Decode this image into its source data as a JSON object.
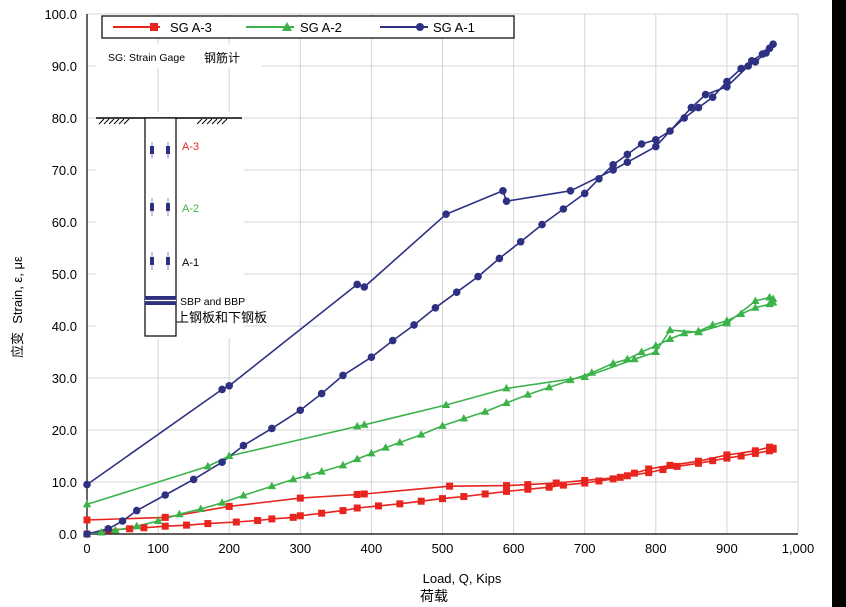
{
  "chart_data": {
    "type": "line",
    "title": "",
    "xlabel": "Load, Q, Kips",
    "xlabel_cn": "荷载",
    "ylabel": "Strain, ε, με",
    "ylabel_cn": "应变",
    "xlim": [
      0,
      1000
    ],
    "ylim": [
      0,
      100
    ],
    "x_ticks": [
      0,
      100,
      200,
      300,
      400,
      500,
      600,
      700,
      800,
      900,
      1000
    ],
    "x_tick_labels": [
      "0",
      "100",
      "200",
      "300",
      "400",
      "500",
      "600",
      "700",
      "800",
      "900",
      "1,000"
    ],
    "y_ticks": [
      0,
      10,
      20,
      30,
      40,
      50,
      60,
      70,
      80,
      90,
      100
    ],
    "y_tick_labels": [
      "0.0",
      "10.0",
      "20.0",
      "30.0",
      "40.0",
      "50.0",
      "60.0",
      "70.0",
      "80.0",
      "90.0",
      "100.0"
    ],
    "grid": true,
    "legend_position": "top",
    "series": [
      {
        "name": "SG A-3",
        "color": "#e8241f",
        "marker": "square",
        "points": [
          [
            0,
            0
          ],
          [
            30,
            0.8
          ],
          [
            60,
            1
          ],
          [
            80,
            1.2
          ],
          [
            110,
            1.5
          ],
          [
            140,
            1.7
          ],
          [
            170,
            2
          ],
          [
            210,
            2.3
          ],
          [
            240,
            2.6
          ],
          [
            260,
            2.9
          ],
          [
            290,
            3.2
          ],
          [
            300,
            3.5
          ],
          [
            330,
            4
          ],
          [
            360,
            4.5
          ],
          [
            380,
            5
          ],
          [
            410,
            5.4
          ],
          [
            440,
            5.8
          ],
          [
            470,
            6.3
          ],
          [
            500,
            6.8
          ],
          [
            530,
            7.2
          ],
          [
            560,
            7.7
          ],
          [
            590,
            8.2
          ],
          [
            620,
            8.6
          ],
          [
            650,
            9
          ],
          [
            670,
            9.4
          ],
          [
            700,
            9.8
          ],
          [
            720,
            10.2
          ],
          [
            740,
            10.6
          ],
          [
            760,
            11.2
          ],
          [
            790,
            11.8
          ],
          [
            810,
            12.4
          ],
          [
            830,
            13
          ],
          [
            860,
            13.6
          ],
          [
            880,
            14.1
          ],
          [
            900,
            14.6
          ],
          [
            920,
            15
          ],
          [
            940,
            15.5
          ],
          [
            960,
            16
          ],
          [
            965,
            16.3
          ],
          [
            965,
            16.5
          ],
          [
            960,
            16.7
          ],
          [
            940,
            16
          ],
          [
            900,
            15.2
          ],
          [
            860,
            14
          ],
          [
            820,
            13.2
          ],
          [
            790,
            12.5
          ],
          [
            770,
            11.7
          ],
          [
            750,
            10.9
          ],
          [
            700,
            10.3
          ],
          [
            660,
            9.8
          ],
          [
            620,
            9.5
          ],
          [
            590,
            9.3
          ],
          [
            510,
            9.2
          ],
          [
            390,
            7.7
          ],
          [
            380,
            7.6
          ],
          [
            300,
            6.9
          ],
          [
            200,
            5.3
          ],
          [
            110,
            3.2
          ],
          [
            0,
            2.7
          ]
        ]
      },
      {
        "name": "SG A-2",
        "color": "#3cb34a",
        "marker": "triangle",
        "points": [
          [
            0,
            0
          ],
          [
            20,
            0.3
          ],
          [
            40,
            0.7
          ],
          [
            70,
            1.5
          ],
          [
            100,
            2.5
          ],
          [
            130,
            3.8
          ],
          [
            160,
            4.8
          ],
          [
            190,
            6
          ],
          [
            220,
            7.4
          ],
          [
            260,
            9.2
          ],
          [
            290,
            10.5
          ],
          [
            310,
            11.2
          ],
          [
            330,
            12
          ],
          [
            360,
            13.2
          ],
          [
            380,
            14.4
          ],
          [
            400,
            15.5
          ],
          [
            420,
            16.6
          ],
          [
            440,
            17.6
          ],
          [
            470,
            19.1
          ],
          [
            500,
            20.8
          ],
          [
            530,
            22.2
          ],
          [
            560,
            23.5
          ],
          [
            590,
            25.2
          ],
          [
            620,
            26.8
          ],
          [
            650,
            28.2
          ],
          [
            680,
            29.6
          ],
          [
            710,
            31
          ],
          [
            740,
            32.8
          ],
          [
            760,
            33.6
          ],
          [
            780,
            35
          ],
          [
            800,
            36.2
          ],
          [
            820,
            37.5
          ],
          [
            840,
            38.6
          ],
          [
            860,
            39
          ],
          [
            880,
            40.2
          ],
          [
            900,
            41
          ],
          [
            920,
            42.3
          ],
          [
            940,
            43.5
          ],
          [
            960,
            44.2
          ],
          [
            965,
            44.5
          ],
          [
            965,
            45.2
          ],
          [
            960,
            45.5
          ],
          [
            940,
            44.8
          ],
          [
            900,
            40.5
          ],
          [
            860,
            38.8
          ],
          [
            820,
            39.2
          ],
          [
            800,
            35
          ],
          [
            770,
            33.6
          ],
          [
            700,
            30.2
          ],
          [
            590,
            28
          ],
          [
            505,
            24.8
          ],
          [
            390,
            21
          ],
          [
            380,
            20.7
          ],
          [
            200,
            15
          ],
          [
            170,
            13
          ],
          [
            0,
            5.7
          ]
        ]
      },
      {
        "name": "SG A-1",
        "color": "#2e3082",
        "marker": "circle",
        "points": [
          [
            0,
            0
          ],
          [
            30,
            1
          ],
          [
            50,
            2.5
          ],
          [
            70,
            4.5
          ],
          [
            110,
            7.5
          ],
          [
            150,
            10.5
          ],
          [
            190,
            13.8
          ],
          [
            220,
            17
          ],
          [
            260,
            20.3
          ],
          [
            300,
            23.8
          ],
          [
            330,
            27
          ],
          [
            360,
            30.5
          ],
          [
            400,
            34
          ],
          [
            430,
            37.2
          ],
          [
            460,
            40.2
          ],
          [
            490,
            43.5
          ],
          [
            520,
            46.5
          ],
          [
            550,
            49.5
          ],
          [
            580,
            53
          ],
          [
            610,
            56.2
          ],
          [
            640,
            59.5
          ],
          [
            670,
            62.5
          ],
          [
            700,
            65.5
          ],
          [
            720,
            68.3
          ],
          [
            740,
            71
          ],
          [
            760,
            73
          ],
          [
            780,
            75
          ],
          [
            800,
            75.8
          ],
          [
            820,
            77.5
          ],
          [
            840,
            80
          ],
          [
            860,
            82
          ],
          [
            880,
            84
          ],
          [
            900,
            87
          ],
          [
            920,
            89.5
          ],
          [
            935,
            91
          ],
          [
            950,
            92.3
          ],
          [
            960,
            93.4
          ],
          [
            965,
            94.2
          ],
          [
            955,
            92.5
          ],
          [
            940,
            90.8
          ],
          [
            930,
            90
          ],
          [
            900,
            86
          ],
          [
            870,
            84.5
          ],
          [
            850,
            82
          ],
          [
            800,
            74.5
          ],
          [
            760,
            71.5
          ],
          [
            740,
            70
          ],
          [
            680,
            66
          ],
          [
            590,
            64
          ],
          [
            585,
            66
          ],
          [
            505,
            61.5
          ],
          [
            390,
            47.5
          ],
          [
            380,
            48
          ],
          [
            200,
            28.5
          ],
          [
            190,
            27.8
          ],
          [
            0,
            9.5
          ]
        ]
      }
    ],
    "inset": {
      "note": "SG: Strain Gage",
      "note_cn": "钢筋计",
      "labels": [
        "A-3",
        "A-2",
        "A-1"
      ],
      "plate_label": "SBP and BBP",
      "plate_label_cn": "上钢板和下钢板"
    }
  }
}
